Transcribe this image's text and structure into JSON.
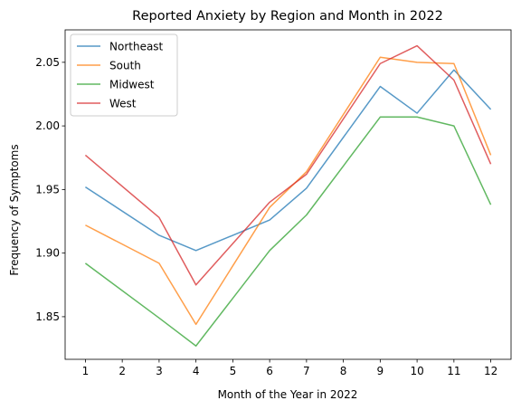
{
  "chart_data": {
    "type": "line",
    "title": "Reported Anxiety by Region and Month in 2022",
    "xlabel": "Month of the Year in 2022",
    "ylabel": "Frequency of Symptoms",
    "x_ticks": [
      1,
      2,
      3,
      4,
      5,
      6,
      7,
      8,
      9,
      10,
      11,
      12
    ],
    "y_ticks": [
      1.85,
      1.9,
      1.95,
      2.0,
      2.05
    ],
    "y_tick_labels": [
      "1.85",
      "1.90",
      "1.95",
      "2.00",
      "2.05"
    ],
    "xlim": [
      0.45,
      12.55
    ],
    "ylim": [
      1.8165,
      2.0755
    ],
    "grid": false,
    "legend_position": "top-left",
    "series": [
      {
        "name": "Northeast",
        "color": "#1f77b4",
        "x": [
          1,
          3,
          4,
          6,
          7,
          9,
          10,
          11,
          12
        ],
        "y": [
          1.952,
          1.914,
          1.902,
          1.926,
          1.951,
          2.031,
          2.01,
          2.044,
          2.013
        ]
      },
      {
        "name": "South",
        "color": "#ff7f0e",
        "x": [
          1,
          3,
          4,
          6,
          7,
          9,
          10,
          11,
          12
        ],
        "y": [
          1.922,
          1.892,
          1.844,
          1.936,
          1.964,
          2.054,
          2.05,
          2.049,
          1.977
        ]
      },
      {
        "name": "Midwest",
        "color": "#2ca02c",
        "x": [
          1,
          3,
          4,
          6,
          7,
          9,
          10,
          11,
          12
        ],
        "y": [
          1.892,
          1.849,
          1.827,
          1.902,
          1.93,
          2.007,
          2.007,
          2.0,
          1.938
        ]
      },
      {
        "name": "West",
        "color": "#d62728",
        "x": [
          1,
          3,
          4,
          6,
          7,
          9,
          10,
          11,
          12
        ],
        "y": [
          1.977,
          1.928,
          1.875,
          1.94,
          1.962,
          2.049,
          2.063,
          2.036,
          1.97
        ]
      }
    ]
  }
}
